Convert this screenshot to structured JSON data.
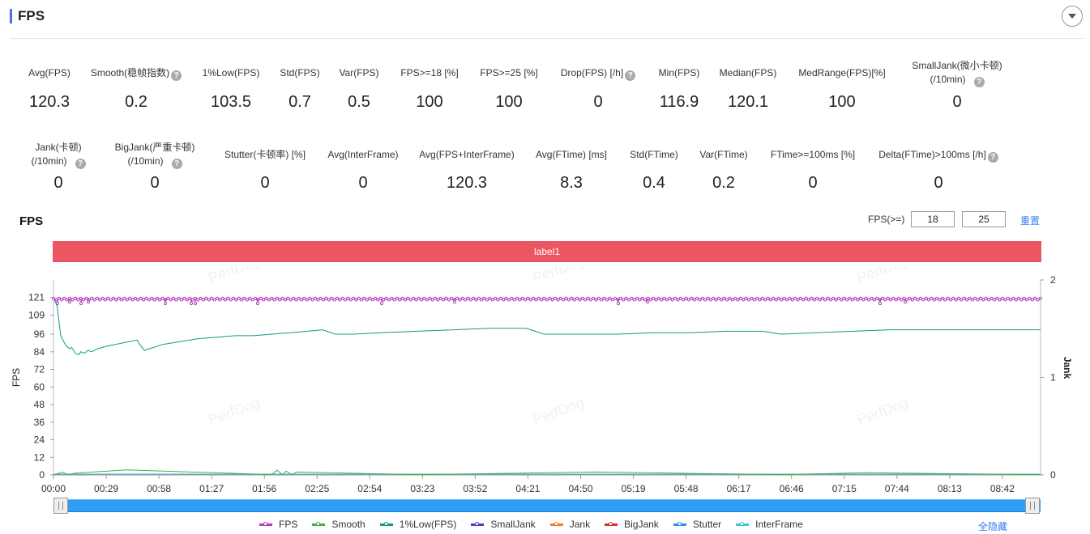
{
  "header": {
    "title": "FPS"
  },
  "stats_row1": [
    {
      "label": "Avg(FPS)",
      "value": "120.3",
      "help": false
    },
    {
      "label": "Smooth(稳帧指数)",
      "value": "0.2",
      "help": true
    },
    {
      "label": "1%Low(FPS)",
      "value": "103.5",
      "help": false
    },
    {
      "label": "Std(FPS)",
      "value": "0.7",
      "help": false
    },
    {
      "label": "Var(FPS)",
      "value": "0.5",
      "help": false
    },
    {
      "label": "FPS>=18 [%]",
      "value": "100",
      "help": false
    },
    {
      "label": "FPS>=25 [%]",
      "value": "100",
      "help": false
    },
    {
      "label": "Drop(FPS) [/h]",
      "value": "0",
      "help": true
    },
    {
      "label": "Min(FPS)",
      "value": "116.9",
      "help": false
    },
    {
      "label": "Median(FPS)",
      "value": "120.1",
      "help": false
    },
    {
      "label": "MedRange(FPS)[%]",
      "value": "100",
      "help": false
    },
    {
      "label": "SmallJank(微小卡顿)",
      "label2": "(/10min)",
      "value": "0",
      "help": true
    }
  ],
  "stats_row2": [
    {
      "label": "Jank(卡顿)",
      "label2": "(/10min)",
      "value": "0",
      "help": true
    },
    {
      "label": "BigJank(严重卡顿)",
      "label2": "(/10min)",
      "value": "0",
      "help": true
    },
    {
      "label": "Stutter(卡顿率) [%]",
      "value": "0",
      "help": false
    },
    {
      "label": "Avg(InterFrame)",
      "value": "0",
      "help": false
    },
    {
      "label": "Avg(FPS+InterFrame)",
      "value": "120.3",
      "help": false
    },
    {
      "label": "Avg(FTime) [ms]",
      "value": "8.3",
      "help": false
    },
    {
      "label": "Std(FTime)",
      "value": "0.4",
      "help": false
    },
    {
      "label": "Var(FTime)",
      "value": "0.2",
      "help": false
    },
    {
      "label": "FTime>=100ms [%]",
      "value": "0",
      "help": false
    },
    {
      "label": "Delta(FTime)>100ms [/h]",
      "value": "0",
      "help": true
    }
  ],
  "chart_header": {
    "title": "FPS",
    "threshold_label": "FPS(>=)",
    "threshold1": "18",
    "threshold2": "25",
    "reset_label": "重置",
    "label_bar": "label1"
  },
  "watermark": "PerfDog",
  "legend": {
    "items": [
      {
        "name": "FPS",
        "color": "#b13cbd"
      },
      {
        "name": "Smooth",
        "color": "#3fb24a"
      },
      {
        "name": "1%Low(FPS)",
        "color": "#13998c"
      },
      {
        "name": "SmallJank",
        "color": "#4f3fd1"
      },
      {
        "name": "Jank",
        "color": "#f07d2a"
      },
      {
        "name": "BigJank",
        "color": "#d6332a"
      },
      {
        "name": "Stutter",
        "color": "#3a8ee0"
      },
      {
        "name": "InterFrame",
        "color": "#3cc6d6"
      }
    ],
    "hide_all_label": "全隐藏"
  },
  "chart_data": {
    "type": "line",
    "ylabel": "FPS",
    "ylabel_right": "Jank",
    "y_ticks": [
      0,
      12,
      24,
      36,
      48,
      60,
      72,
      84,
      96,
      109,
      121
    ],
    "y_right_ticks": [
      0,
      1,
      2
    ],
    "ylim": [
      0,
      133
    ],
    "ylim_right": [
      0,
      2
    ],
    "x_ticks": [
      "00:00",
      "00:29",
      "00:58",
      "01:27",
      "01:56",
      "02:25",
      "02:54",
      "03:23",
      "03:52",
      "04:21",
      "04:50",
      "05:19",
      "05:48",
      "06:17",
      "06:46",
      "07:15",
      "07:44",
      "08:13",
      "08:42"
    ],
    "xlim_seconds": [
      0,
      543
    ],
    "series": [
      {
        "name": "FPS",
        "color": "#b13cbd",
        "x": [
          0,
          543
        ],
        "values": [
          120,
          120
        ],
        "dips": [
          [
            2,
            117
          ],
          [
            6,
            118
          ],
          [
            19,
            117
          ],
          [
            48,
            118
          ],
          [
            137,
            117
          ],
          [
            172,
            117
          ],
          [
            176,
            117
          ],
          [
            252,
            117
          ],
          [
            405,
            117
          ],
          [
            495,
            118
          ],
          [
            697,
            117
          ],
          [
            733,
            118
          ],
          [
            1020,
            117
          ],
          [
            1051,
            118
          ]
        ]
      },
      {
        "name": "1%Low(FPS)",
        "color": "#13998c",
        "x": [
          0,
          2,
          3,
          4,
          6,
          7,
          9,
          10,
          12,
          14,
          15,
          17,
          19,
          21,
          24,
          27,
          30,
          34,
          38,
          42,
          46,
          48,
          50,
          55,
          60,
          70,
          80,
          90,
          100,
          110,
          120,
          130,
          140,
          148,
          155,
          165,
          180,
          200,
          220,
          240,
          260,
          270,
          275,
          290,
          310,
          330,
          350,
          370,
          390,
          400,
          420,
          440,
          460,
          480,
          500,
          520,
          543
        ],
        "values": [
          121,
          115,
          105,
          95,
          90,
          88,
          86,
          87,
          83,
          82,
          84,
          83,
          85,
          84,
          86,
          87,
          88,
          89,
          90,
          91,
          92,
          88,
          85,
          87,
          89,
          91,
          93,
          94,
          95,
          95,
          96,
          97,
          98,
          99,
          96,
          96,
          97,
          98,
          99,
          100,
          100,
          96,
          96,
          96,
          96,
          97,
          97,
          98,
          98,
          96,
          97,
          98,
          99,
          99,
          99,
          99,
          99
        ]
      },
      {
        "name": "Smooth",
        "color": "#3fb24a",
        "x": [
          0,
          5,
          8,
          12,
          40,
          120,
          123,
          126,
          128,
          131,
          134,
          200,
          298,
          400,
          447,
          543
        ],
        "values": [
          0.2,
          1.8,
          0.2,
          1.2,
          3.5,
          0.2,
          3.2,
          0.2,
          2.6,
          0.2,
          2.0,
          0.2,
          2.0,
          0.2,
          1.5,
          0.2
        ]
      }
    ]
  }
}
